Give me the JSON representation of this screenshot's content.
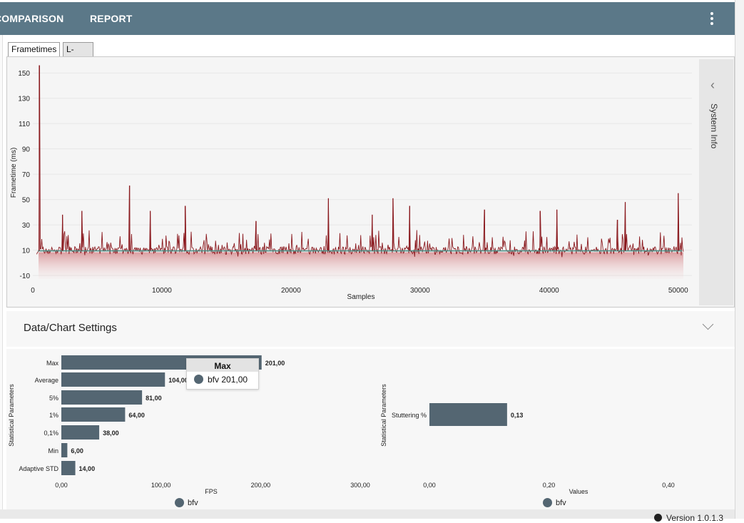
{
  "nav": {
    "comparison": "COMPARISON",
    "report": "REPORT"
  },
  "tabs": [
    {
      "label": "Frametimes"
    },
    {
      "label": "L-shape"
    }
  ],
  "frametime_chart": {
    "type": "line",
    "xlabel": "Samples",
    "ylabel": "Frametime (ms)",
    "xlim": [
      0,
      50400
    ],
    "ylim": [
      -15,
      158
    ],
    "x_ticks": [
      {
        "v": 0,
        "l": "0"
      },
      {
        "v": 10000,
        "l": "10000"
      },
      {
        "v": 20000,
        "l": "20000"
      },
      {
        "v": 30000,
        "l": "30000"
      },
      {
        "v": 40000,
        "l": "40000"
      },
      {
        "v": 50000,
        "l": "50000"
      }
    ],
    "y_ticks": [
      {
        "v": 150,
        "l": "150"
      },
      {
        "v": 130,
        "l": "130"
      },
      {
        "v": 110,
        "l": "110"
      },
      {
        "v": 90,
        "l": "90"
      },
      {
        "v": 70,
        "l": "70"
      },
      {
        "v": 50,
        "l": "50"
      },
      {
        "v": 30,
        "l": "30"
      },
      {
        "v": 10,
        "l": "10"
      },
      {
        "v": -10,
        "l": "-10"
      }
    ],
    "baseline": 9.5,
    "spikes": [
      [
        500,
        156
      ],
      [
        2300,
        38
      ],
      [
        3800,
        41
      ],
      [
        7500,
        61
      ],
      [
        9100,
        41
      ],
      [
        11800,
        45
      ],
      [
        17300,
        33
      ],
      [
        22900,
        51
      ],
      [
        26300,
        38
      ],
      [
        27900,
        51
      ],
      [
        29200,
        45
      ],
      [
        35000,
        42
      ],
      [
        39300,
        41
      ],
      [
        40600,
        42
      ],
      [
        45300,
        34
      ],
      [
        45900,
        48
      ],
      [
        50000,
        55
      ]
    ],
    "colors": {
      "frametime": "#8b1a1f",
      "average": "#4d8f86"
    }
  },
  "system_info": {
    "label": "System Info"
  },
  "settings": {
    "title": "Data/Chart Settings"
  },
  "chart_data": [
    {
      "type": "bar",
      "orientation": "horizontal",
      "categories": [
        "Max",
        "Average",
        "5%",
        "1%",
        "0,1%",
        "Min",
        "Adaptive STD"
      ],
      "values": [
        201.0,
        104.0,
        81.0,
        64.0,
        38.0,
        6.0,
        14.0
      ],
      "value_labels": [
        "201,00",
        "104,00",
        "81,00",
        "64,00",
        "38,00",
        "6,00",
        "14,00"
      ],
      "xlabel": "FPS",
      "ylabel": "Statistical Parameters",
      "xlim": [
        0,
        300
      ],
      "x_ticks": [
        {
          "v": 0,
          "l": "0,00"
        },
        {
          "v": 100,
          "l": "100,00"
        },
        {
          "v": 200,
          "l": "200,00"
        },
        {
          "v": 300,
          "l": "300,00"
        }
      ],
      "series": [
        {
          "name": "bfv",
          "color": "#546672"
        }
      ],
      "legend": "bottom"
    },
    {
      "type": "bar",
      "orientation": "horizontal",
      "categories": [
        "Stuttering %"
      ],
      "values": [
        0.13
      ],
      "value_labels": [
        "0,13"
      ],
      "xlabel": "Values",
      "ylabel": "Statistical Parameters",
      "xlim": [
        0,
        0.4
      ],
      "x_ticks": [
        {
          "v": 0,
          "l": "0,00"
        },
        {
          "v": 0.2,
          "l": "0,20"
        },
        {
          "v": 0.4,
          "l": "0,40"
        }
      ],
      "series": [
        {
          "name": "bfv",
          "color": "#546672"
        }
      ],
      "legend": "bottom"
    }
  ],
  "tooltip": {
    "title": "Max",
    "series": "bfv",
    "value": "201,00"
  },
  "legend": {
    "label": "bfv"
  },
  "version": {
    "label": "Version 1.0.1.3"
  }
}
